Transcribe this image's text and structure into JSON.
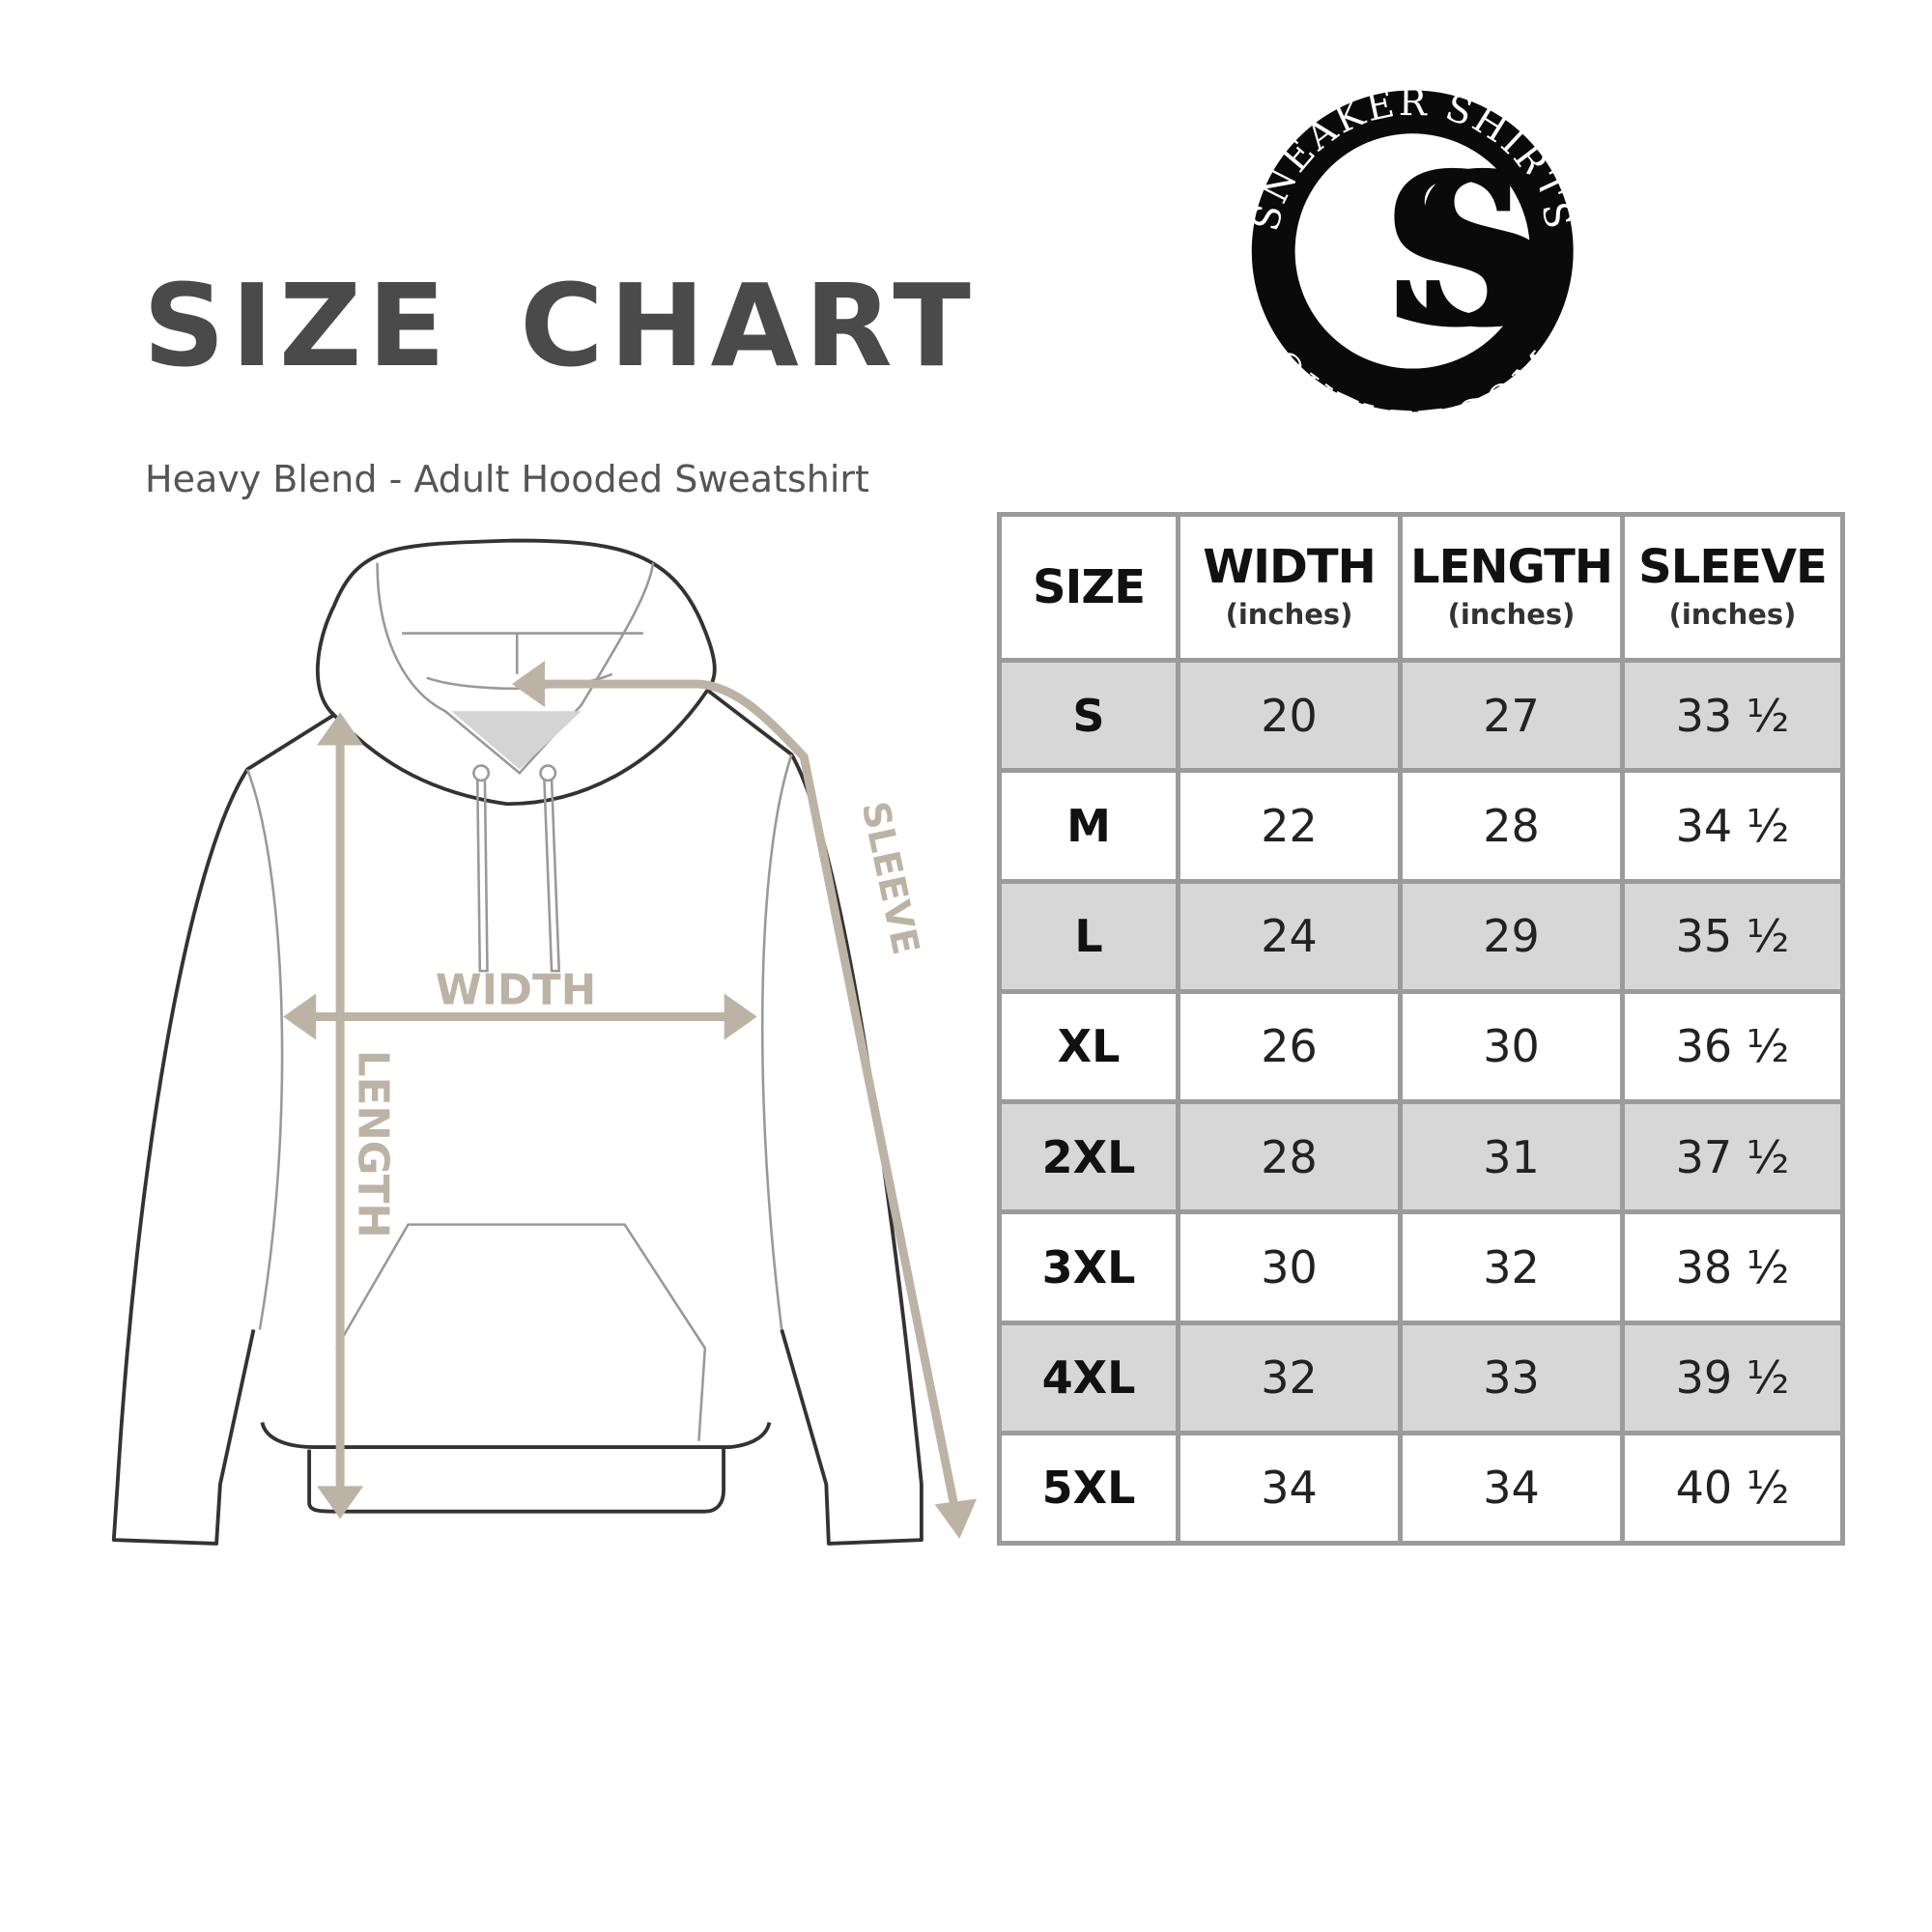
{
  "title": "SIZE CHART",
  "subtitle": "Heavy Blend - Adult Hooded Sweatshirt",
  "logo": {
    "top_text": "SNEAKER SHIRTS",
    "bottom_text": "OUTLET.COM",
    "monogram": "SS"
  },
  "diagram": {
    "labels": {
      "width": "WIDTH",
      "length": "LENGTH",
      "sleeve": "SLEEVE"
    },
    "colors": {
      "arrow": "#bdb3a4",
      "outline": "#333333",
      "inner": "#9a9a9a"
    }
  },
  "table": {
    "headers": [
      {
        "label": "SIZE",
        "unit": ""
      },
      {
        "label": "WIDTH",
        "unit": "(inches)"
      },
      {
        "label": "LENGTH",
        "unit": "(inches)"
      },
      {
        "label": "SLEEVE",
        "unit": "(inches)"
      }
    ],
    "rows": [
      [
        "S",
        "20",
        "27",
        "33 ½"
      ],
      [
        "M",
        "22",
        "28",
        "34 ½"
      ],
      [
        "L",
        "24",
        "29",
        "35 ½"
      ],
      [
        "XL",
        "26",
        "30",
        "36 ½"
      ],
      [
        "2XL",
        "28",
        "31",
        "37 ½"
      ],
      [
        "3XL",
        "30",
        "32",
        "38 ½"
      ],
      [
        "4XL",
        "32",
        "33",
        "39 ½"
      ],
      [
        "5XL",
        "34",
        "34",
        "40 ½"
      ]
    ],
    "colors": {
      "stripe": "#d7d7d7",
      "border": "#9b9b9b"
    }
  }
}
